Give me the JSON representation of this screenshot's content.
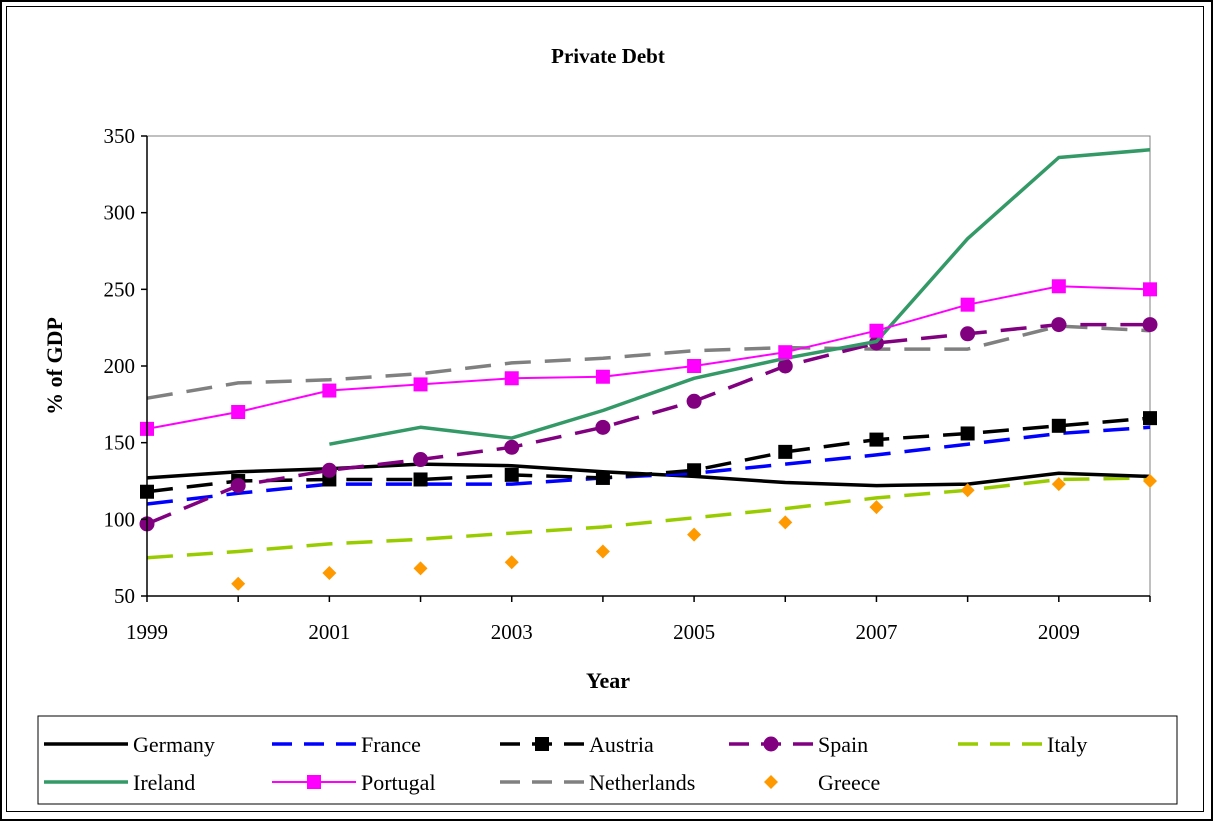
{
  "chart_data": {
    "type": "line",
    "title": "Private Debt",
    "xlabel": "Year",
    "ylabel": "% of GDP",
    "xlim": [
      1999,
      2010
    ],
    "ylim": [
      50,
      350
    ],
    "y_ticks": [
      50,
      100,
      150,
      200,
      250,
      300,
      350
    ],
    "x_tick_labels": [
      "1999",
      "2001",
      "2003",
      "2005",
      "2007",
      "2009"
    ],
    "x_tick_values": [
      1999,
      2001,
      2003,
      2005,
      2007,
      2009
    ],
    "x": [
      1999,
      2000,
      2001,
      2002,
      2003,
      2004,
      2005,
      2006,
      2007,
      2008,
      2009,
      2010
    ],
    "grid": false,
    "legend_position": "bottom",
    "series": [
      {
        "name": "Germany",
        "color": "#000000",
        "style": "solid",
        "marker": "none",
        "values": [
          127,
          131,
          133,
          136,
          135,
          131,
          128,
          124,
          122,
          123,
          130,
          128
        ]
      },
      {
        "name": "France",
        "color": "#0000ff",
        "style": "dashed",
        "marker": "none",
        "values": [
          110,
          117,
          123,
          123,
          123,
          127,
          130,
          136,
          142,
          149,
          156,
          160
        ]
      },
      {
        "name": "Austria",
        "color": "#000000",
        "style": "dashed",
        "marker": "square",
        "values": [
          118,
          125,
          126,
          126,
          129,
          127,
          132,
          144,
          152,
          156,
          161,
          166
        ]
      },
      {
        "name": "Spain",
        "color": "#800080",
        "style": "dashed",
        "marker": "circle",
        "values": [
          97,
          122,
          132,
          139,
          147,
          160,
          177,
          200,
          215,
          221,
          227,
          227
        ]
      },
      {
        "name": "Italy",
        "color": "#99cc00",
        "style": "dashed",
        "marker": "none",
        "values": [
          75,
          79,
          84,
          87,
          91,
          95,
          101,
          107,
          114,
          119,
          126,
          127
        ]
      },
      {
        "name": "Ireland",
        "color": "#339966",
        "style": "solid",
        "marker": "none",
        "values": [
          null,
          null,
          149,
          160,
          153,
          171,
          192,
          205,
          216,
          283,
          336,
          341
        ]
      },
      {
        "name": "Portugal",
        "color": "#ff00ff",
        "style": "solid",
        "marker": "square",
        "values": [
          159,
          170,
          184,
          188,
          192,
          193,
          200,
          209,
          223,
          240,
          252,
          250
        ]
      },
      {
        "name": "Netherlands",
        "color": "#808080",
        "style": "dashed",
        "marker": "none",
        "values": [
          179,
          189,
          191,
          195,
          202,
          205,
          210,
          212,
          211,
          211,
          226,
          223
        ]
      },
      {
        "name": "Greece",
        "color": "#ff9900",
        "style": "none",
        "marker": "diamond",
        "values": [
          null,
          58,
          65,
          68,
          72,
          79,
          90,
          98,
          108,
          119,
          123,
          125
        ]
      }
    ]
  }
}
